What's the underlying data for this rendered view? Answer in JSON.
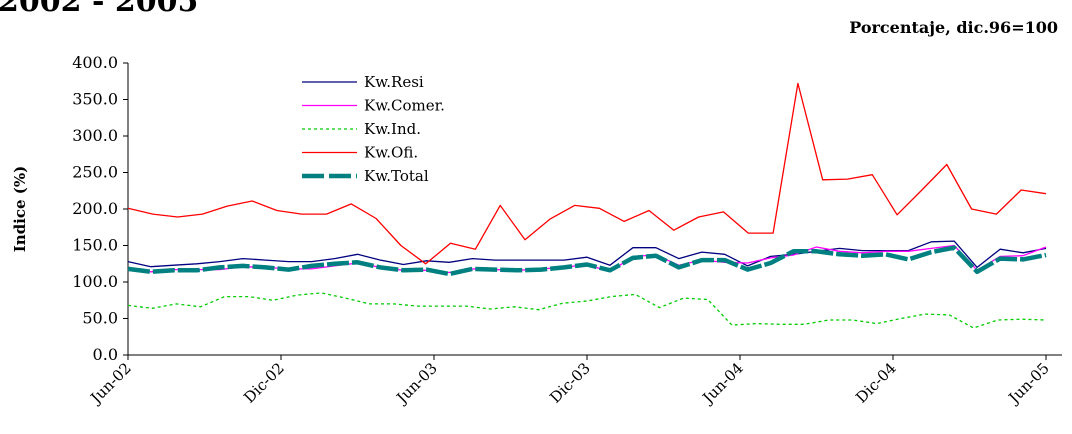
{
  "title": "2002 - 2005",
  "subtitle": "Porcentaje, dic.96=100",
  "chart_data": {
    "type": "line",
    "ylabel": "Indice (%)",
    "ylim": [
      0,
      400
    ],
    "yticks": [
      "400.0",
      "350.0",
      "300.0",
      "250.0",
      "200.0",
      "150.0",
      "100.0",
      "50.0",
      "0.0"
    ],
    "xticks": [
      "Jun-02",
      "Dic-02",
      "Jun-03",
      "Dic-03",
      "Jun-04",
      "Dic-04",
      "Jun-05"
    ],
    "grid": false,
    "legend_position": "top-left inside plot",
    "series": [
      {
        "name": "Kw.Resi",
        "color": "#000080",
        "style": "solid",
        "values": [
          128,
          121,
          123,
          125,
          128,
          132,
          130,
          128,
          128,
          132,
          138,
          130,
          124,
          129,
          127,
          132,
          130,
          130,
          130,
          130,
          134,
          123,
          147,
          147,
          132,
          141,
          138,
          122,
          135,
          138,
          142,
          146,
          143,
          143,
          143,
          155,
          156,
          120,
          145,
          140,
          146
        ]
      },
      {
        "name": "Kw.Comer.",
        "color": "#ff00ff",
        "style": "solid",
        "values": [
          118,
          114,
          117,
          117,
          117,
          121,
          120,
          118,
          118,
          122,
          126,
          120,
          116,
          116,
          113,
          118,
          117,
          116,
          118,
          120,
          124,
          114,
          135,
          137,
          123,
          130,
          127,
          126,
          133,
          137,
          148,
          142,
          140,
          142,
          142,
          146,
          150,
          116,
          135,
          136,
          148
        ]
      },
      {
        "name": "Kw.Ind.",
        "color": "#00cc00",
        "style": "dotted",
        "values": [
          68,
          64,
          70,
          66,
          80,
          80,
          75,
          82,
          85,
          78,
          70,
          70,
          67,
          67,
          67,
          63,
          66,
          62,
          71,
          74,
          80,
          83,
          65,
          78,
          76,
          41,
          43,
          42,
          42,
          48,
          48,
          43,
          50,
          56,
          55,
          37,
          48,
          49,
          48
        ]
      },
      {
        "name": "Kw.Ofi.",
        "color": "#ff0000",
        "style": "solid",
        "values": [
          201,
          193,
          189,
          193,
          204,
          211,
          198,
          193,
          193,
          207,
          187,
          150,
          125,
          153,
          145,
          205,
          158,
          186,
          205,
          201,
          183,
          198,
          171,
          189,
          196,
          167,
          167,
          372,
          240,
          241,
          247,
          192,
          226,
          261,
          200,
          193,
          226,
          221
        ]
      },
      {
        "name": "Kw.Total",
        "color": "#008080",
        "style": "dashed-thick",
        "values": [
          118,
          114,
          116,
          116,
          120,
          122,
          120,
          117,
          122,
          125,
          127,
          120,
          116,
          117,
          111,
          118,
          117,
          116,
          117,
          120,
          124,
          116,
          133,
          136,
          120,
          130,
          130,
          117,
          126,
          142,
          142,
          138,
          136,
          138,
          131,
          141,
          147,
          114,
          132,
          131,
          137
        ]
      }
    ]
  }
}
